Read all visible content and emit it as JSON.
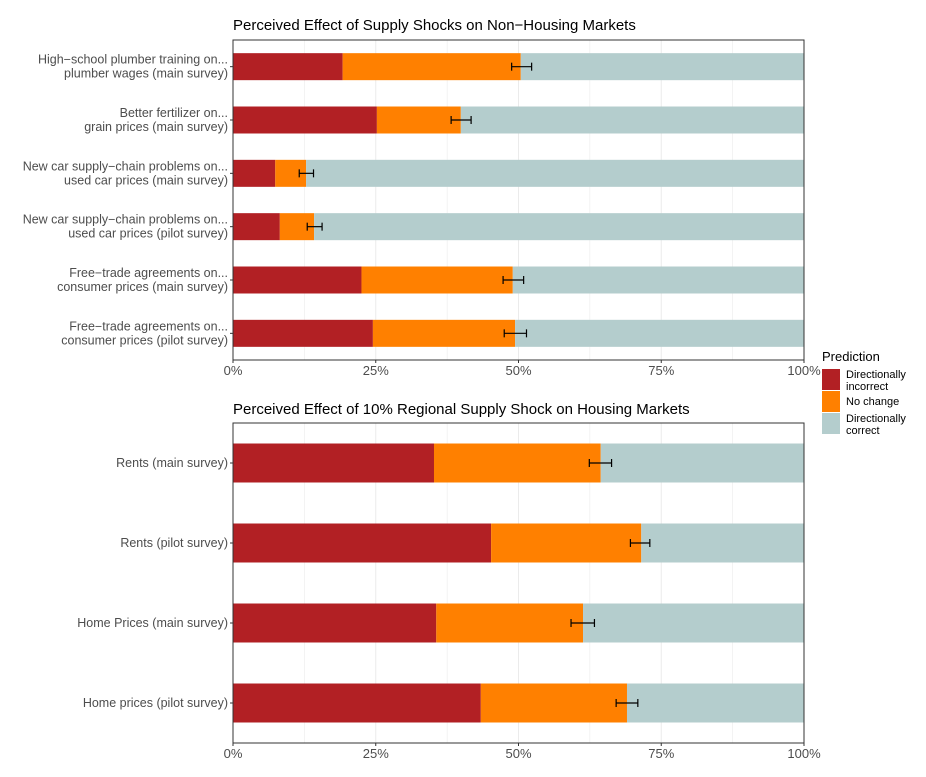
{
  "chart_data": [
    {
      "type": "bar",
      "orientation": "horizontal-stacked",
      "title": "Perceived Effect of Supply Shocks on Non−Housing Markets",
      "xlim": [
        0,
        100
      ],
      "x_ticks": [
        "0%",
        "25%",
        "50%",
        "75%",
        "100%"
      ],
      "categories": [
        [
          "High−school plumber training on...",
          "plumber wages (main survey)"
        ],
        [
          "Better fertilizer on...",
          "grain prices (main survey)"
        ],
        [
          "New car supply−chain problems on...",
          "used car prices (main survey)"
        ],
        [
          "New car supply−chain problems on...",
          "used car prices (pilot survey)"
        ],
        [
          "Free−trade agreements on...",
          "consumer prices (main survey)"
        ],
        [
          "Free−trade agreements on...",
          "consumer prices (pilot survey)"
        ]
      ],
      "series": [
        {
          "name": "Directionally incorrect",
          "values": [
            19.2,
            25.2,
            7.4,
            8.2,
            22.5,
            24.5
          ]
        },
        {
          "name": "No change",
          "values": [
            31.2,
            14.7,
            5.4,
            6.0,
            26.5,
            24.9
          ]
        },
        {
          "name": "Directionally correct",
          "values": [
            49.6,
            60.1,
            87.2,
            85.8,
            51.0,
            50.6
          ]
        }
      ],
      "error_bars": [
        [
          48.8,
          52.3
        ],
        [
          38.2,
          41.7
        ],
        [
          11.6,
          14.1
        ],
        [
          13.0,
          15.6
        ],
        [
          47.3,
          50.9
        ],
        [
          47.5,
          51.4
        ]
      ]
    },
    {
      "type": "bar",
      "orientation": "horizontal-stacked",
      "title": "Perceived Effect of 10% Regional Supply Shock on Housing Markets",
      "xlim": [
        0,
        100
      ],
      "x_ticks": [
        "0%",
        "25%",
        "50%",
        "75%",
        "100%"
      ],
      "categories": [
        [
          "Rents (main survey)"
        ],
        [
          "Rents (pilot survey)"
        ],
        [
          "Home Prices (main survey)"
        ],
        [
          "Home prices (pilot survey)"
        ]
      ],
      "series": [
        {
          "name": "Directionally incorrect",
          "values": [
            35.2,
            45.2,
            35.6,
            43.4
          ]
        },
        {
          "name": "No change",
          "values": [
            29.2,
            26.3,
            25.7,
            25.6
          ]
        },
        {
          "name": "Directionally correct",
          "values": [
            35.6,
            28.5,
            38.7,
            31.0
          ]
        }
      ],
      "error_bars": [
        [
          62.4,
          66.3
        ],
        [
          69.6,
          73.0
        ],
        [
          59.2,
          63.3
        ],
        [
          67.1,
          70.9
        ]
      ]
    }
  ],
  "legend": {
    "title": "Prediction",
    "placement": "right",
    "items": [
      {
        "label": [
          "Directionally",
          "incorrect"
        ],
        "color": "#b22024"
      },
      {
        "label": [
          "No change"
        ],
        "color": "#ff8000"
      },
      {
        "label": [
          "Directionally",
          "correct"
        ],
        "color": "#b4cdcd"
      }
    ]
  }
}
